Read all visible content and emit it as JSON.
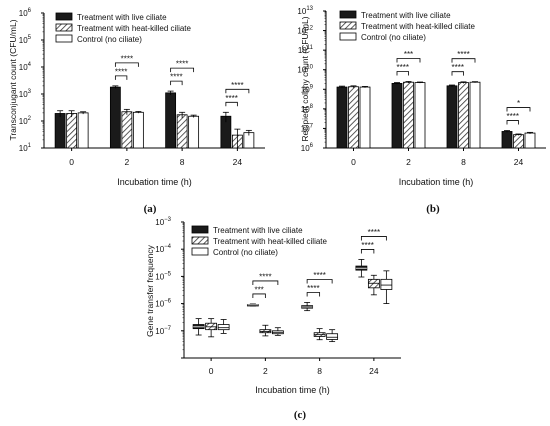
{
  "chart_data": [
    {
      "type": "bar",
      "panel_label": "(a)",
      "scale": "log",
      "ylim": [
        10,
        1000000
      ],
      "yticks": [
        "10",
        "10",
        "10",
        "10",
        "10",
        "10"
      ],
      "yexps": [
        "1",
        "2",
        "3",
        "4",
        "5",
        "6"
      ],
      "ylabel": "Transconjugant count (CFU/mL)",
      "xlabel": "Incubation time (h)",
      "categories": [
        "0",
        "2",
        "8",
        "24"
      ],
      "legend": {
        "position": "top-left",
        "entries": [
          "Treatment with live ciliate",
          "Treatment with heat-killed ciliate",
          "Control (no ciliate)"
        ]
      },
      "series": [
        {
          "name": "Treatment with live ciliate",
          "values": [
            190,
            1800,
            1100,
            150
          ],
          "err": [
            50,
            200,
            180,
            60
          ],
          "fill": "#1a1a1a"
        },
        {
          "name": "Treatment with heat-killed ciliate",
          "values": [
            190,
            220,
            170,
            30
          ],
          "err": [
            50,
            50,
            40,
            20
          ],
          "fill": "hatch"
        },
        {
          "name": "Control (no ciliate)",
          "values": [
            200,
            210,
            150,
            37
          ],
          "err": [
            20,
            15,
            15,
            8
          ],
          "fill": "#ffffff"
        }
      ],
      "annotations": [
        {
          "text": "****",
          "cat": 1,
          "from": 0,
          "to": 1,
          "level": 1
        },
        {
          "text": "****",
          "cat": 1,
          "from": 0,
          "to": 2,
          "level": 2
        },
        {
          "text": "****",
          "cat": 2,
          "from": 0,
          "to": 1,
          "level": 1
        },
        {
          "text": "****",
          "cat": 2,
          "from": 0,
          "to": 2,
          "level": 2
        },
        {
          "text": "****",
          "cat": 3,
          "from": 0,
          "to": 1,
          "level": 1
        },
        {
          "text": "****",
          "cat": 3,
          "from": 0,
          "to": 2,
          "level": 2
        }
      ]
    },
    {
      "type": "bar",
      "panel_label": "(b)",
      "scale": "log",
      "ylim": [
        1000000,
        10000000000000
      ],
      "yticks": [
        "10",
        "10",
        "10",
        "10",
        "10",
        "10",
        "10",
        "10"
      ],
      "yexps": [
        "6",
        "7",
        "8",
        "9",
        "10",
        "11",
        "12",
        "13"
      ],
      "ylabel": "Recipient colony count (CFU/mL)",
      "xlabel": "Incubation time (h)",
      "categories": [
        "0",
        "2",
        "8",
        "24"
      ],
      "legend": {
        "position": "top-left",
        "entries": [
          "Treatment with live ciliate",
          "Treatment with heat-killed ciliate",
          "Control (no ciliate)"
        ]
      },
      "series": [
        {
          "name": "Treatment with live ciliate",
          "values": [
            1300000000,
            2000000000,
            1500000000,
            7000000
          ],
          "err": [
            150000000,
            200000000,
            150000000,
            800000
          ],
          "fill": "#1a1a1a"
        },
        {
          "name": "Treatment with heat-killed ciliate",
          "values": [
            1350000000,
            2300000000,
            2200000000,
            4800000
          ],
          "err": [
            150000000,
            200000000,
            200000000,
            400000
          ],
          "fill": "hatch"
        },
        {
          "name": "Control (no ciliate)",
          "values": [
            1300000000,
            2200000000,
            2300000000,
            5800000
          ],
          "err": [
            100000000,
            150000000,
            150000000,
            500000
          ],
          "fill": "#ffffff"
        }
      ],
      "annotations": [
        {
          "text": "****",
          "cat": 1,
          "from": 0,
          "to": 1,
          "level": 1
        },
        {
          "text": "***",
          "cat": 1,
          "from": 0,
          "to": 2,
          "level": 2
        },
        {
          "text": "****",
          "cat": 2,
          "from": 0,
          "to": 1,
          "level": 1
        },
        {
          "text": "****",
          "cat": 2,
          "from": 0,
          "to": 2,
          "level": 2
        },
        {
          "text": "****",
          "cat": 3,
          "from": 0,
          "to": 1,
          "level": 1
        },
        {
          "text": "*",
          "cat": 3,
          "from": 0,
          "to": 2,
          "level": 2
        }
      ]
    },
    {
      "type": "box",
      "panel_label": "(c)",
      "scale": "log",
      "ylim": [
        1e-08,
        0.001
      ],
      "yticks": [
        "10",
        "10",
        "10",
        "10",
        "10"
      ],
      "yexps": [
        "−7",
        "−6",
        "−5",
        "−4",
        "−3"
      ],
      "ylabel": "Gene transfer frequency",
      "xlabel": "Incubation time (h)",
      "categories": [
        "0",
        "2",
        "8",
        "24"
      ],
      "legend": {
        "position": "top-left",
        "entries": [
          "Treatment with live ciliate",
          "Treatment with heat-killed ciliate",
          "Control (no ciliate)"
        ]
      },
      "series": [
        {
          "name": "Treatment with live ciliate",
          "fill": "#1a1a1a",
          "boxes": [
            {
              "min": 7e-08,
              "q1": 1.2e-07,
              "med": 1.4e-07,
              "q3": 1.7e-07,
              "max": 2.8e-07
            },
            {
              "min": 8.2e-07,
              "q1": 8.7e-07,
              "med": 9e-07,
              "q3": 9.3e-07,
              "max": 9.7e-07
            },
            {
              "min": 5.5e-07,
              "q1": 6.8e-07,
              "med": 7.5e-07,
              "q3": 8.4e-07,
              "max": 1.1e-06
            },
            {
              "min": 9.5e-06,
              "q1": 1.7e-05,
              "med": 2e-05,
              "q3": 2.4e-05,
              "max": 4.2e-05
            }
          ]
        },
        {
          "name": "Treatment with heat-killed ciliate",
          "fill": "hatch",
          "boxes": [
            {
              "min": 6e-08,
              "q1": 1.1e-07,
              "med": 1.4e-07,
              "q3": 1.9e-07,
              "max": 2.8e-07
            },
            {
              "min": 6.5e-08,
              "q1": 8.5e-08,
              "med": 9.5e-08,
              "q3": 1.1e-07,
              "max": 1.6e-07
            },
            {
              "min": 4.7e-08,
              "q1": 6.2e-08,
              "med": 7.2e-08,
              "q3": 8.5e-08,
              "max": 1.2e-07
            },
            {
              "min": 2.1e-06,
              "q1": 3.8e-06,
              "med": 5.6e-06,
              "q3": 7.8e-06,
              "max": 1.1e-05
            }
          ]
        },
        {
          "name": "Control (no ciliate)",
          "fill": "#ffffff",
          "boxes": [
            {
              "min": 8e-08,
              "q1": 1.1e-07,
              "med": 1.3e-07,
              "q3": 1.7e-07,
              "max": 2.6e-07
            },
            {
              "min": 6.8e-08,
              "q1": 7.8e-08,
              "med": 8.8e-08,
              "q3": 1e-07,
              "max": 1.3e-07
            },
            {
              "min": 4e-08,
              "q1": 4.8e-08,
              "med": 5.8e-08,
              "q3": 7.8e-08,
              "max": 1.1e-07
            },
            {
              "min": 1e-06,
              "q1": 3.3e-06,
              "med": 4.8e-06,
              "q3": 7.8e-06,
              "max": 1.6e-05
            }
          ]
        }
      ],
      "annotations": [
        {
          "text": "***",
          "cat": 1,
          "from": 0,
          "to": 1,
          "level": 1
        },
        {
          "text": "****",
          "cat": 1,
          "from": 0,
          "to": 2,
          "level": 2
        },
        {
          "text": "****",
          "cat": 2,
          "from": 0,
          "to": 1,
          "level": 1
        },
        {
          "text": "****",
          "cat": 2,
          "from": 0,
          "to": 2,
          "level": 2
        },
        {
          "text": "****",
          "cat": 3,
          "from": 0,
          "to": 1,
          "level": 1
        },
        {
          "text": "****",
          "cat": 3,
          "from": 0,
          "to": 2,
          "level": 2
        }
      ]
    }
  ]
}
